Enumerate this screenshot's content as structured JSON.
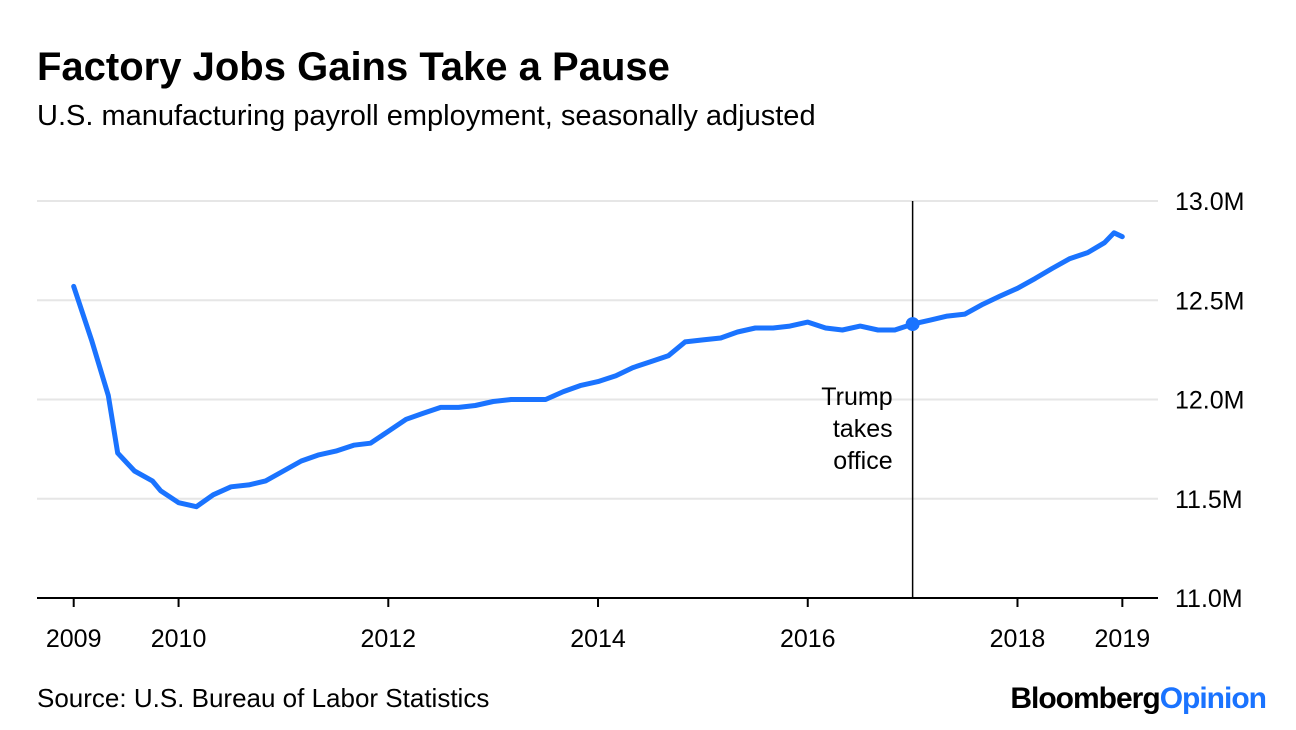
{
  "chart_data": {
    "type": "line",
    "title": "Factory Jobs Gains Take a Pause",
    "subtitle": "U.S. manufacturing payroll employment, seasonally adjusted",
    "source": "Source: U.S. Bureau of Labor Statistics",
    "brand": [
      "Bloomberg",
      "Opinion"
    ],
    "x": [
      2009.0,
      2009.17,
      2009.33,
      2009.42,
      2009.58,
      2009.75,
      2009.83,
      2010.0,
      2010.17,
      2010.33,
      2010.5,
      2010.67,
      2010.83,
      2011.0,
      2011.17,
      2011.33,
      2011.5,
      2011.67,
      2011.83,
      2012.0,
      2012.17,
      2012.33,
      2012.5,
      2012.67,
      2012.83,
      2013.0,
      2013.17,
      2013.33,
      2013.5,
      2013.67,
      2013.83,
      2014.0,
      2014.17,
      2014.33,
      2014.5,
      2014.67,
      2014.83,
      2015.0,
      2015.17,
      2015.33,
      2015.5,
      2015.67,
      2015.83,
      2016.0,
      2016.17,
      2016.33,
      2016.5,
      2016.67,
      2016.83,
      2017.0,
      2017.17,
      2017.33,
      2017.5,
      2017.67,
      2017.83,
      2018.0,
      2018.17,
      2018.33,
      2018.5,
      2018.67,
      2018.83,
      2018.92,
      2019.0
    ],
    "series": [
      {
        "name": "Manufacturing payroll employment",
        "color": "#1a73ff",
        "values": [
          12.57,
          12.3,
          12.02,
          11.73,
          11.64,
          11.59,
          11.54,
          11.48,
          11.46,
          11.52,
          11.56,
          11.57,
          11.59,
          11.64,
          11.69,
          11.72,
          11.74,
          11.77,
          11.78,
          11.84,
          11.9,
          11.93,
          11.96,
          11.96,
          11.97,
          11.99,
          12.0,
          12.0,
          12.0,
          12.04,
          12.07,
          12.09,
          12.12,
          12.16,
          12.19,
          12.22,
          12.29,
          12.3,
          12.31,
          12.34,
          12.36,
          12.36,
          12.37,
          12.39,
          12.36,
          12.35,
          12.37,
          12.35,
          12.35,
          12.38,
          12.4,
          12.42,
          12.43,
          12.48,
          12.52,
          12.56,
          12.61,
          12.66,
          12.71,
          12.74,
          12.79,
          12.84,
          12.82
        ]
      }
    ],
    "annotation": {
      "x": 2017.0,
      "y": 12.38,
      "lines": [
        "Trump",
        "takes",
        "office"
      ]
    },
    "xlim": [
      2008.65,
      2019.34
    ],
    "xticks": [
      2009,
      2010,
      2012,
      2014,
      2016,
      2018,
      2019
    ],
    "ylim": [
      11,
      13
    ],
    "yticks": [
      {
        "value": 11,
        "label": "11.0M"
      },
      {
        "value": 11.5,
        "label": "11.5M"
      },
      {
        "value": 12,
        "label": "12.0M"
      },
      {
        "value": 12.5,
        "label": "12.5M"
      },
      {
        "value": 13,
        "label": "13.0M"
      }
    ],
    "grid": true
  }
}
